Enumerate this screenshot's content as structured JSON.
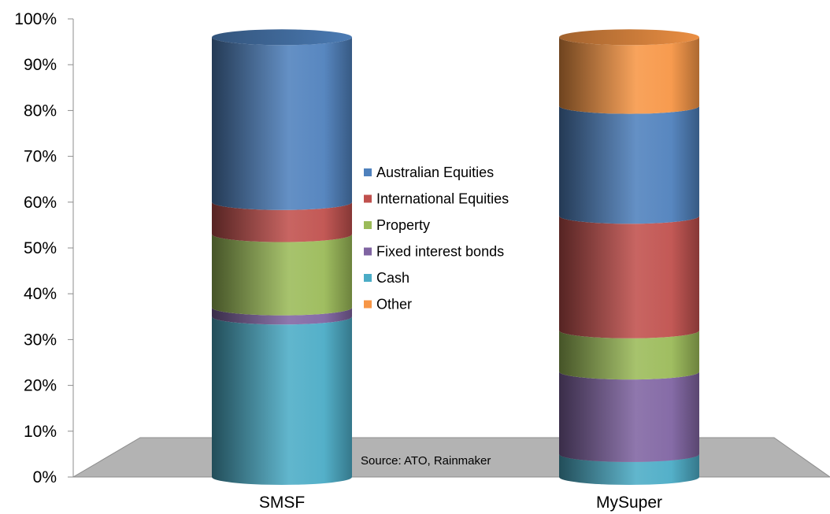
{
  "chart_data": {
    "type": "bar",
    "stacked": true,
    "categories": [
      "SMSF",
      "MySuper"
    ],
    "series": [
      {
        "name": "Cash",
        "color": "#4bacc6",
        "values": [
          35,
          5
        ]
      },
      {
        "name": "Fixed interest bonds",
        "color": "#8064a2",
        "values": [
          2,
          18
        ]
      },
      {
        "name": "Property",
        "color": "#9bbb59",
        "values": [
          16,
          9
        ]
      },
      {
        "name": "International Equities",
        "color": "#c0504d",
        "values": [
          7,
          25
        ]
      },
      {
        "name": "Australian Equities",
        "color": "#4f81bd",
        "values": [
          36,
          24
        ]
      },
      {
        "name": "Other",
        "color": "#f79646",
        "values": [
          0,
          15
        ]
      }
    ],
    "legend_order": [
      "Australian Equities",
      "International Equities",
      "Property",
      "Fixed interest bonds",
      "Cash",
      "Other"
    ],
    "legend_position": "center",
    "y_ticks": [
      "0%",
      "10%",
      "20%",
      "30%",
      "40%",
      "50%",
      "60%",
      "70%",
      "80%",
      "90%",
      "100%"
    ],
    "ylim": [
      0,
      100
    ],
    "annotation": "Source: ATO, Rainmaker",
    "shape": "cylinder",
    "grid": false
  }
}
